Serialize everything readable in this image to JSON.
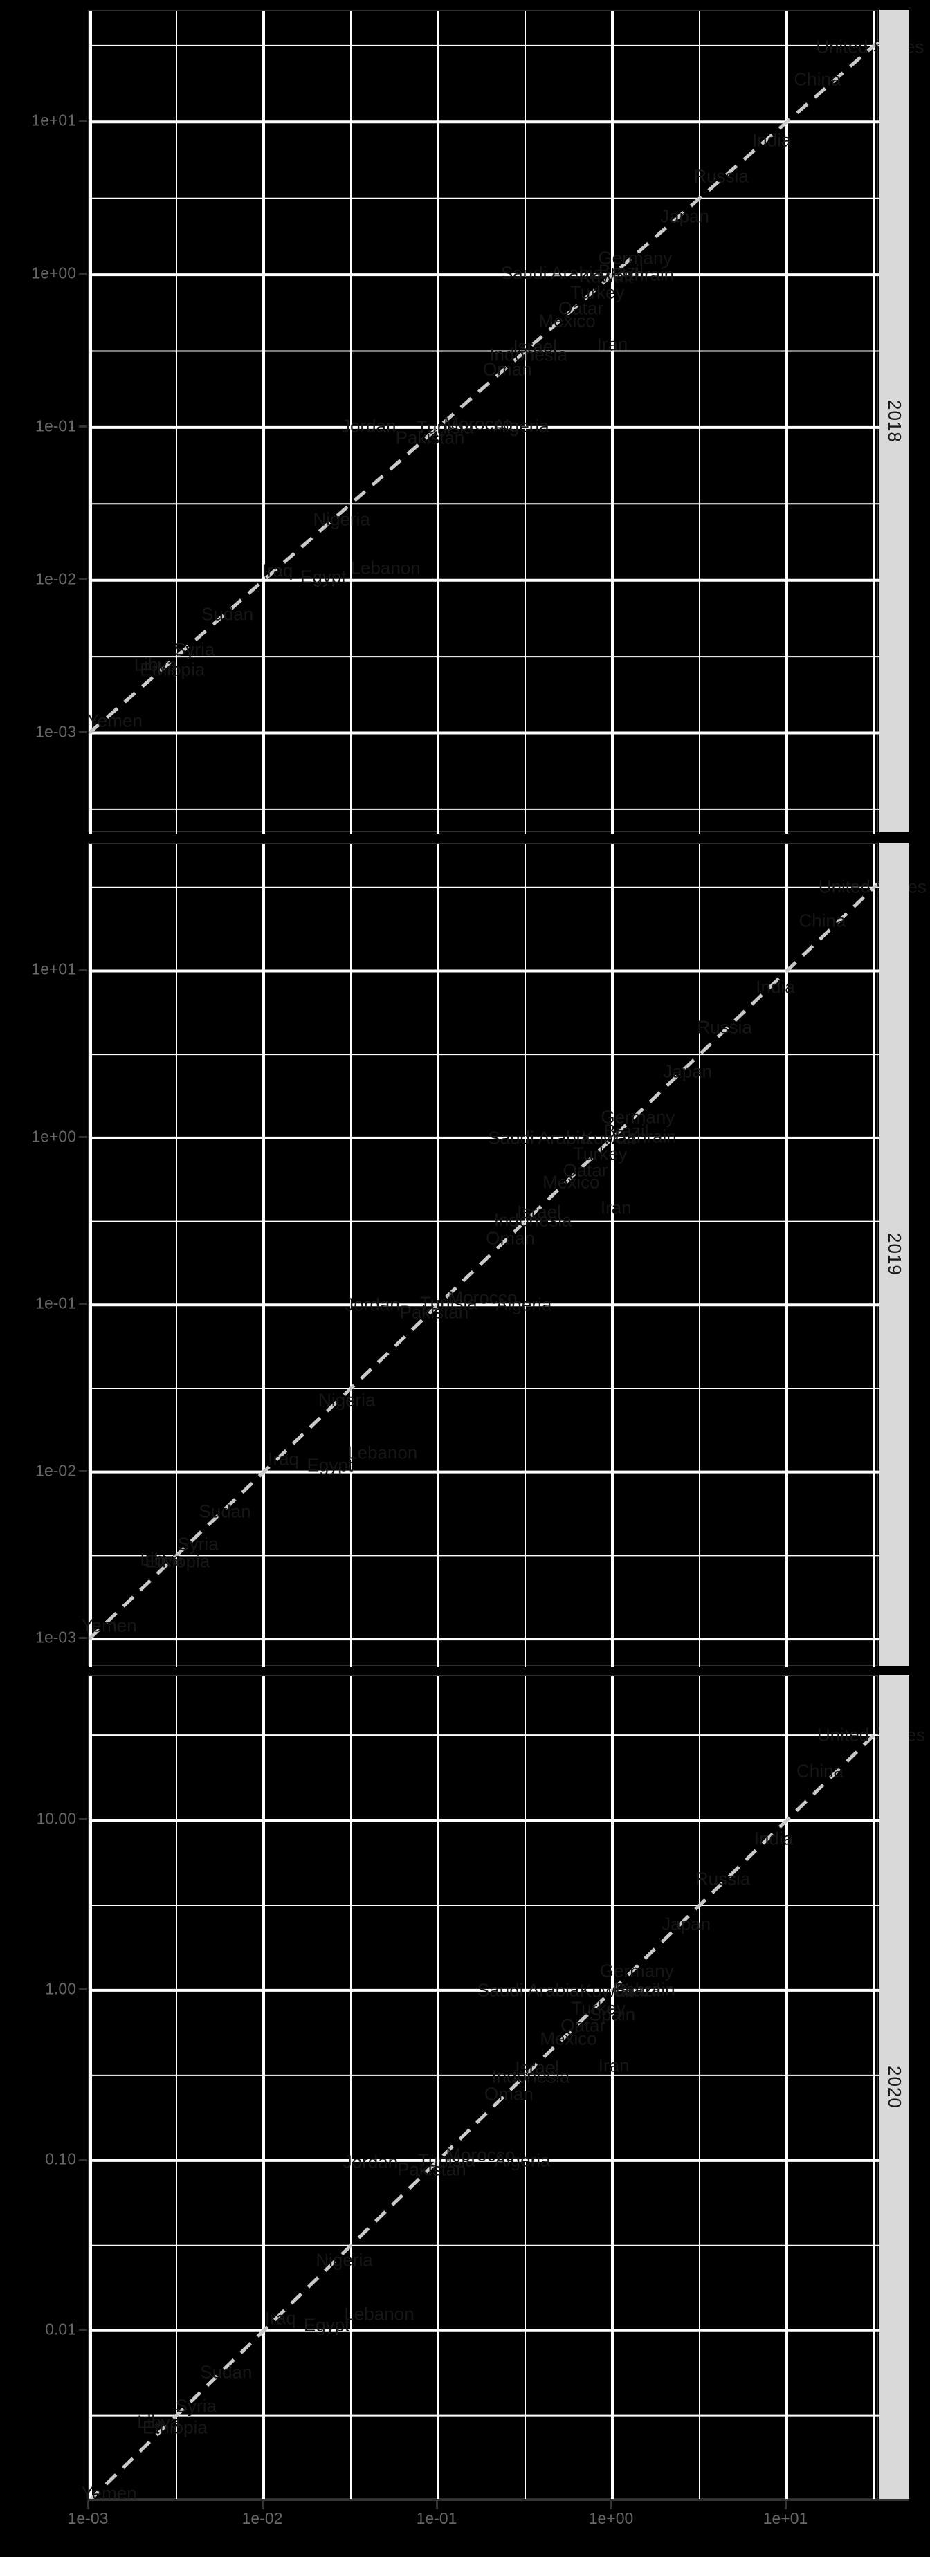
{
  "colors": {
    "background": "#000000",
    "gridline": "#ffffff",
    "axis_text": "#666666",
    "axis_line": "#333333",
    "tick_mark": "#333333",
    "strip_background": "#d9d9d9",
    "strip_text": "#1a1a1a",
    "reference_line": "#c9c9c9",
    "point_label_text": "#161616"
  },
  "facets": [
    {
      "label": "2018"
    },
    {
      "label": "2019"
    },
    {
      "label": "2020"
    }
  ],
  "x_axis": {
    "ticks": [
      {
        "label": "1e-03",
        "value": 0.001
      },
      {
        "label": "1e-02",
        "value": 0.01
      },
      {
        "label": "1e-01",
        "value": 0.1
      },
      {
        "label": "1e+00",
        "value": 1
      },
      {
        "label": "1e+01",
        "value": 10
      }
    ]
  },
  "y_axes": [
    {
      "ticks": [
        {
          "label": "1e+01",
          "value": 10
        },
        {
          "label": "1e+00",
          "value": 1
        },
        {
          "label": "1e-01",
          "value": 0.1
        },
        {
          "label": "1e-02",
          "value": 0.01
        },
        {
          "label": "1e-03",
          "value": 0.001
        }
      ]
    },
    {
      "ticks": [
        {
          "label": "1e+01",
          "value": 10
        },
        {
          "label": "1e+00",
          "value": 1
        },
        {
          "label": "1e-01",
          "value": 0.1
        },
        {
          "label": "1e-02",
          "value": 0.01
        },
        {
          "label": "1e-03",
          "value": 0.001
        }
      ]
    },
    {
      "ticks": [
        {
          "label": "10.00",
          "value": 10
        },
        {
          "label": "1.00",
          "value": 1
        },
        {
          "label": "0.10",
          "value": 0.1
        },
        {
          "label": "0.01",
          "value": 0.01
        }
      ]
    }
  ],
  "chart_data": {
    "type": "scatter",
    "marker": "country text labels drawn in near-black on black background",
    "x_scale": "log10",
    "y_scale": "log10",
    "x_range": [
      0.001,
      34
    ],
    "grid": "major and minor white gridlines at decades and half-decades",
    "legend": "none",
    "reference_line": "dashed light-gray diagonal y = x in every facet",
    "facet_variable_values": [
      "2018",
      "2019",
      "2020"
    ],
    "facets": [
      {
        "year": "2018",
        "points": [
          {
            "label": "Yemen",
            "x": 0.0014,
            "y": 0.0012
          },
          {
            "label": "Libya",
            "x": 0.0024,
            "y": 0.0028
          },
          {
            "label": "Ethiopia",
            "x": 0.003,
            "y": 0.0026
          },
          {
            "label": "Syria",
            "x": 0.004,
            "y": 0.0035
          },
          {
            "label": "Sudan",
            "x": 0.0062,
            "y": 0.006
          },
          {
            "label": "Iraq",
            "x": 0.012,
            "y": 0.0115
          },
          {
            "label": "Egypt",
            "x": 0.022,
            "y": 0.0105
          },
          {
            "label": "Nigeria",
            "x": 0.028,
            "y": 0.025
          },
          {
            "label": "Lebanon",
            "x": 0.05,
            "y": 0.012
          },
          {
            "label": "Jordan",
            "x": 0.04,
            "y": 0.102
          },
          {
            "label": "Pakistan",
            "x": 0.09,
            "y": 0.085
          },
          {
            "label": "Tunisia",
            "x": 0.11,
            "y": 0.1
          },
          {
            "label": "Morocco",
            "x": 0.17,
            "y": 0.105
          },
          {
            "label": "Oman",
            "x": 0.25,
            "y": 0.24
          },
          {
            "label": "Algeria",
            "x": 0.3,
            "y": 0.102
          },
          {
            "label": "Indonesia",
            "x": 0.33,
            "y": 0.3
          },
          {
            "label": "Israel",
            "x": 0.36,
            "y": 0.34
          },
          {
            "label": "Saudi Arabia",
            "x": 0.45,
            "y": 1.02
          },
          {
            "label": "Mexico",
            "x": 0.55,
            "y": 0.5
          },
          {
            "label": "Qatar",
            "x": 0.66,
            "y": 0.6
          },
          {
            "label": "Turkey",
            "x": 0.82,
            "y": 0.76
          },
          {
            "label": "Kuwait",
            "x": 0.92,
            "y": 0.97
          },
          {
            "label": "Iran",
            "x": 1.0,
            "y": 0.35
          },
          {
            "label": "Brazil",
            "x": 1.12,
            "y": 1.05
          },
          {
            "label": "Germany",
            "x": 1.35,
            "y": 1.28
          },
          {
            "label": "Bahrain",
            "x": 1.5,
            "y": 1.0
          },
          {
            "label": "Japan",
            "x": 2.6,
            "y": 2.4
          },
          {
            "label": "Russia",
            "x": 4.2,
            "y": 4.4
          },
          {
            "label": "India",
            "x": 8.2,
            "y": 7.6
          },
          {
            "label": "China",
            "x": 15,
            "y": 19
          },
          {
            "label": "United States",
            "x": 30,
            "y": 31
          }
        ]
      },
      {
        "year": "2019",
        "points": [
          {
            "label": "Yemen",
            "x": 0.0013,
            "y": 0.0012
          },
          {
            "label": "Libya",
            "x": 0.0026,
            "y": 0.003
          },
          {
            "label": "Ethiopia",
            "x": 0.0032,
            "y": 0.0029
          },
          {
            "label": "Syria",
            "x": 0.0042,
            "y": 0.0037
          },
          {
            "label": "Sudan",
            "x": 0.006,
            "y": 0.0058
          },
          {
            "label": "Iraq",
            "x": 0.013,
            "y": 0.012
          },
          {
            "label": "Egypt",
            "x": 0.024,
            "y": 0.011
          },
          {
            "label": "Nigeria",
            "x": 0.03,
            "y": 0.027
          },
          {
            "label": "Lebanon",
            "x": 0.048,
            "y": 0.013
          },
          {
            "label": "Jordan",
            "x": 0.042,
            "y": 0.1
          },
          {
            "label": "Pakistan",
            "x": 0.095,
            "y": 0.09
          },
          {
            "label": "Tunisia",
            "x": 0.115,
            "y": 0.102
          },
          {
            "label": "Morocco",
            "x": 0.18,
            "y": 0.11
          },
          {
            "label": "Oman",
            "x": 0.26,
            "y": 0.25
          },
          {
            "label": "Algeria",
            "x": 0.31,
            "y": 0.1
          },
          {
            "label": "Indonesia",
            "x": 0.35,
            "y": 0.32
          },
          {
            "label": "Israel",
            "x": 0.38,
            "y": 0.36
          },
          {
            "label": "Saudi Arabia",
            "x": 0.38,
            "y": 1.0
          },
          {
            "label": "Mexico",
            "x": 0.58,
            "y": 0.54
          },
          {
            "label": "Qatar",
            "x": 0.7,
            "y": 0.64
          },
          {
            "label": "Turkey",
            "x": 0.85,
            "y": 0.8
          },
          {
            "label": "Kuwait",
            "x": 0.95,
            "y": 1.0
          },
          {
            "label": "Iran",
            "x": 1.05,
            "y": 0.38
          },
          {
            "label": "Brazil",
            "x": 1.2,
            "y": 1.1
          },
          {
            "label": "Germany",
            "x": 1.4,
            "y": 1.33
          },
          {
            "label": "Bahrain",
            "x": 1.55,
            "y": 1.02
          },
          {
            "label": "Japan",
            "x": 2.7,
            "y": 2.5
          },
          {
            "label": "Russia",
            "x": 4.4,
            "y": 4.6
          },
          {
            "label": "India",
            "x": 8.6,
            "y": 8.0
          },
          {
            "label": "China",
            "x": 16,
            "y": 20
          },
          {
            "label": "United States",
            "x": 31,
            "y": 32
          }
        ]
      },
      {
        "year": "2020",
        "points": [
          {
            "label": "Yemen",
            "x": 0.0013,
            "y": 0.0011
          },
          {
            "label": "Libya",
            "x": 0.0025,
            "y": 0.0029
          },
          {
            "label": "Ethiopia",
            "x": 0.0031,
            "y": 0.0027
          },
          {
            "label": "Syria",
            "x": 0.0041,
            "y": 0.0036
          },
          {
            "label": "Sudan",
            "x": 0.0061,
            "y": 0.0057
          },
          {
            "label": "Iraq",
            "x": 0.0125,
            "y": 0.0118
          },
          {
            "label": "Egypt",
            "x": 0.023,
            "y": 0.0108
          },
          {
            "label": "Nigeria",
            "x": 0.029,
            "y": 0.026
          },
          {
            "label": "Lebanon",
            "x": 0.046,
            "y": 0.0125
          },
          {
            "label": "Jordan",
            "x": 0.041,
            "y": 0.098
          },
          {
            "label": "Pakistan",
            "x": 0.092,
            "y": 0.088
          },
          {
            "label": "Tunisia",
            "x": 0.112,
            "y": 0.1
          },
          {
            "label": "Morocco",
            "x": 0.175,
            "y": 0.108
          },
          {
            "label": "Oman",
            "x": 0.255,
            "y": 0.245
          },
          {
            "label": "Algeria",
            "x": 0.305,
            "y": 0.1
          },
          {
            "label": "Indonesia",
            "x": 0.34,
            "y": 0.31
          },
          {
            "label": "Israel",
            "x": 0.37,
            "y": 0.35
          },
          {
            "label": "Saudi Arabia",
            "x": 0.33,
            "y": 1.0
          },
          {
            "label": "Mexico",
            "x": 0.56,
            "y": 0.52
          },
          {
            "label": "Qatar",
            "x": 0.68,
            "y": 0.62
          },
          {
            "label": "Turkey",
            "x": 0.83,
            "y": 0.78
          },
          {
            "label": "Kuwait",
            "x": 0.93,
            "y": 0.99
          },
          {
            "label": "Spain",
            "x": 1.0,
            "y": 0.72
          },
          {
            "label": "Iran",
            "x": 1.02,
            "y": 0.36
          },
          {
            "label": "Brazil",
            "x": 1.4,
            "y": 1.0
          },
          {
            "label": "Bahrain",
            "x": 1.52,
            "y": 1.01
          },
          {
            "label": "Germany",
            "x": 1.38,
            "y": 1.3
          },
          {
            "label": "Japan",
            "x": 2.65,
            "y": 2.45
          },
          {
            "label": "Russia",
            "x": 4.3,
            "y": 4.5
          },
          {
            "label": "India",
            "x": 8.4,
            "y": 7.8
          },
          {
            "label": "China",
            "x": 15.5,
            "y": 19.5
          },
          {
            "label": "United States",
            "x": 30.5,
            "y": 31.5
          }
        ]
      }
    ]
  }
}
